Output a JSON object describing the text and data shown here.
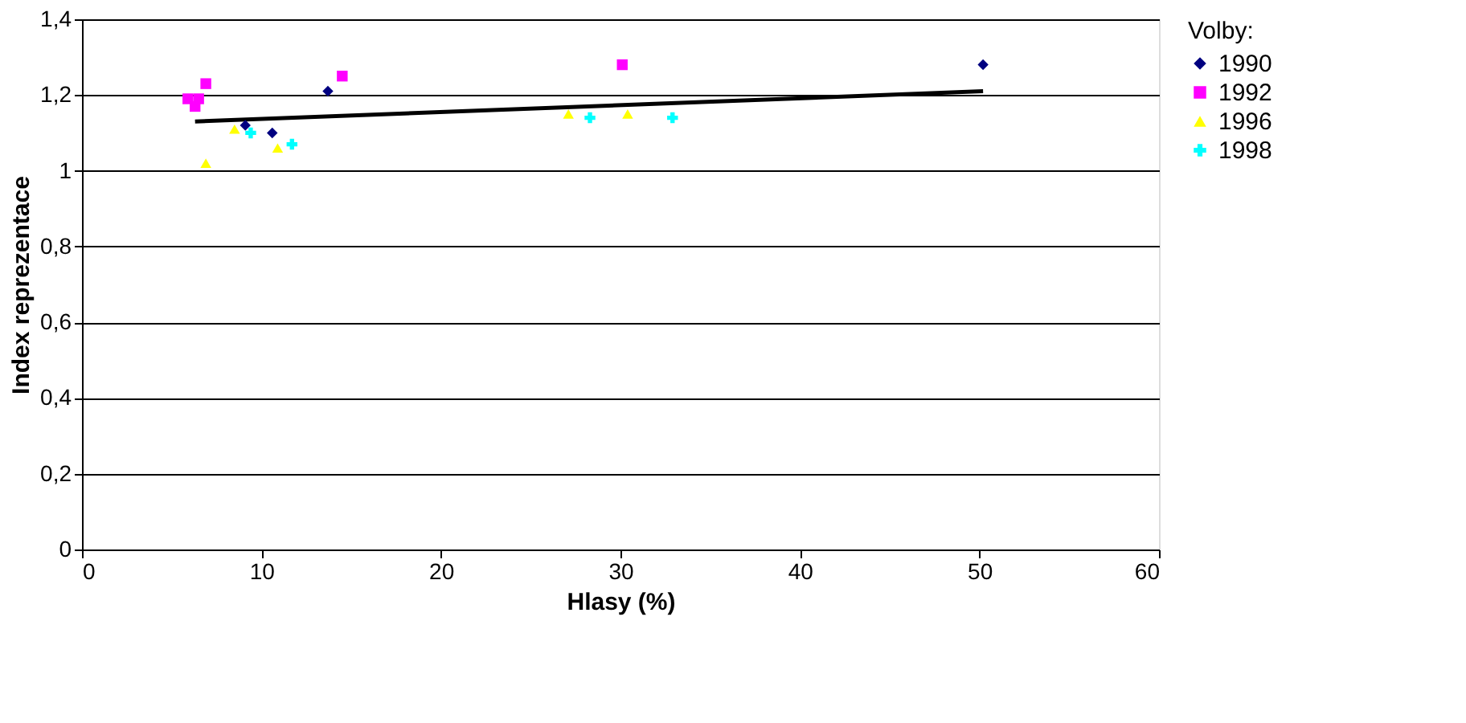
{
  "chart_data": {
    "type": "scatter",
    "xlabel": "Hlasy (%)",
    "ylabel": "Index reprezentace",
    "legend_title": "Volby:",
    "legend": "right",
    "grid": "y",
    "xlim": [
      0,
      60
    ],
    "xticks": [
      0,
      10,
      20,
      30,
      40,
      50,
      60
    ],
    "ylim": [
      0,
      1.4
    ],
    "yticks": [
      0,
      {
        "value": 0.2,
        "label": "0,2"
      },
      {
        "value": 0.4,
        "label": "0,4"
      },
      {
        "value": 0.6,
        "label": "0,6"
      },
      {
        "value": 0.8,
        "label": "0,8"
      },
      1,
      {
        "value": 1.2,
        "label": "1,2"
      },
      {
        "value": 1.4,
        "label": "1,4"
      }
    ],
    "series": [
      {
        "name": "1990",
        "color": "#000080",
        "marker": "diamond",
        "x": [
          9.1,
          10.6,
          13.7,
          50.2
        ],
        "values": [
          1.12,
          1.1,
          1.21,
          1.28
        ]
      },
      {
        "name": "1992",
        "color": "#ff00ff",
        "marker": "square",
        "x": [
          5.9,
          6.3,
          6.5,
          6.9,
          14.5,
          30.1
        ],
        "values": [
          1.19,
          1.17,
          1.19,
          1.23,
          1.25,
          1.28
        ]
      },
      {
        "name": "1996",
        "color": "#ffff00",
        "marker": "triangle",
        "x": [
          6.9,
          8.5,
          10.9,
          27.1,
          30.4
        ],
        "values": [
          1.02,
          1.11,
          1.06,
          1.15,
          1.15
        ]
      },
      {
        "name": "1998",
        "color": "#00ffff",
        "marker": "cross",
        "x": [
          9.4,
          11.7,
          28.3,
          32.9
        ],
        "values": [
          1.1,
          1.07,
          1.14,
          1.14
        ]
      },
      {
        "type": "line",
        "color": "#000000",
        "line_style": "solid",
        "x": [
          6.3,
          50.2
        ],
        "values": [
          1.13,
          1.21
        ]
      }
    ]
  }
}
